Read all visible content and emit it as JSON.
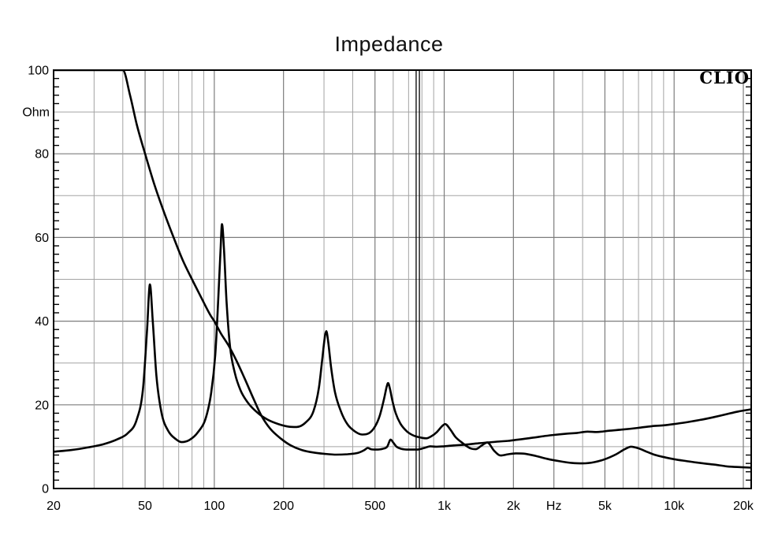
{
  "title": "Impedance",
  "brand": "CLIO",
  "colors": {
    "background": "#ffffff",
    "curve": "#000000",
    "border": "#000000",
    "grid_major": "#7d7d7d",
    "grid_minor": "#a3a3a3",
    "marker_line": "#000000",
    "text": "#000000"
  },
  "chart_data": {
    "type": "line",
    "title": "Impedance",
    "xlabel": "",
    "ylabel": "Ohm",
    "x_unit": "Hz",
    "x_scale": "log",
    "xlim": [
      20,
      21600
    ],
    "ylim": [
      0,
      100
    ],
    "grid": "on",
    "legend_position": "none",
    "y_tick_step_labeled": 20,
    "y_gridline_step": 10,
    "y_minor_tick_step": 2,
    "x_ticks": [
      {
        "value": 20,
        "label": "20"
      },
      {
        "value": 50,
        "label": "50"
      },
      {
        "value": 100,
        "label": "100"
      },
      {
        "value": 200,
        "label": "200"
      },
      {
        "value": 500,
        "label": "500"
      },
      {
        "value": 1000,
        "label": "1k"
      },
      {
        "value": 2000,
        "label": "2k"
      },
      {
        "value": 3000,
        "label": "Hz"
      },
      {
        "value": 5000,
        "label": "5k"
      },
      {
        "value": 10000,
        "label": "10k"
      },
      {
        "value": 20000,
        "label": "20k"
      }
    ],
    "y_ticks": [
      {
        "value": 0,
        "label": "0"
      },
      {
        "value": 20,
        "label": "20"
      },
      {
        "value": 40,
        "label": "40"
      },
      {
        "value": 60,
        "label": "60"
      },
      {
        "value": 80,
        "label": "80"
      },
      {
        "value": 100,
        "label": "100"
      }
    ],
    "marker_lines_hz": [
      755,
      780
    ],
    "series": [
      {
        "name": "impedance-curve-multi-peak",
        "points": [
          [
            20,
            8.8
          ],
          [
            24,
            9.2
          ],
          [
            28,
            9.8
          ],
          [
            33,
            10.6
          ],
          [
            38,
            11.8
          ],
          [
            42,
            13.2
          ],
          [
            46,
            16.5
          ],
          [
            49,
            24
          ],
          [
            51,
            38
          ],
          [
            52.5,
            48.8
          ],
          [
            54,
            40
          ],
          [
            56,
            27
          ],
          [
            59,
            18
          ],
          [
            63,
            13.8
          ],
          [
            68,
            11.8
          ],
          [
            72,
            11.1
          ],
          [
            78,
            11.6
          ],
          [
            85,
            13.5
          ],
          [
            92,
            17
          ],
          [
            97,
            23
          ],
          [
            101,
            32
          ],
          [
            104,
            45
          ],
          [
            106.5,
            57
          ],
          [
            108,
            63.2
          ],
          [
            110,
            58
          ],
          [
            113,
            45
          ],
          [
            117,
            34
          ],
          [
            123,
            27.5
          ],
          [
            130,
            23.5
          ],
          [
            140,
            20.5
          ],
          [
            155,
            18
          ],
          [
            170,
            16.5
          ],
          [
            190,
            15.4
          ],
          [
            210,
            14.8
          ],
          [
            228,
            14.7
          ],
          [
            250,
            15.8
          ],
          [
            270,
            18.5
          ],
          [
            285,
            24
          ],
          [
            295,
            31
          ],
          [
            303,
            36.5
          ],
          [
            307,
            37.6
          ],
          [
            313,
            35
          ],
          [
            322,
            29
          ],
          [
            335,
            23
          ],
          [
            355,
            18.5
          ],
          [
            380,
            15.3
          ],
          [
            410,
            13.6
          ],
          [
            440,
            12.9
          ],
          [
            470,
            13.2
          ],
          [
            500,
            14.8
          ],
          [
            525,
            17.5
          ],
          [
            548,
            21.5
          ],
          [
            562,
            24.3
          ],
          [
            570,
            25.2
          ],
          [
            580,
            24
          ],
          [
            595,
            21
          ],
          [
            615,
            18
          ],
          [
            645,
            15.5
          ],
          [
            690,
            13.6
          ],
          [
            740,
            12.6
          ],
          [
            800,
            12.1
          ],
          [
            835,
            12.0
          ],
          [
            880,
            12.5
          ],
          [
            930,
            13.5
          ],
          [
            975,
            14.8
          ],
          [
            1010,
            15.4
          ],
          [
            1060,
            14.2
          ],
          [
            1120,
            12.3
          ],
          [
            1200,
            10.9
          ],
          [
            1300,
            9.6
          ],
          [
            1370,
            9.4
          ],
          [
            1450,
            10.2
          ],
          [
            1540,
            11.0
          ],
          [
            1650,
            9.0
          ],
          [
            1760,
            7.9
          ],
          [
            1900,
            8.2
          ],
          [
            2050,
            8.4
          ],
          [
            2250,
            8.3
          ],
          [
            2500,
            7.8
          ],
          [
            2800,
            7.1
          ],
          [
            3200,
            6.5
          ],
          [
            3600,
            6.1
          ],
          [
            4000,
            6.0
          ],
          [
            4500,
            6.3
          ],
          [
            5000,
            7.0
          ],
          [
            5600,
            8.2
          ],
          [
            6100,
            9.4
          ],
          [
            6500,
            10.0
          ],
          [
            7000,
            9.6
          ],
          [
            7600,
            8.8
          ],
          [
            8300,
            8.0
          ],
          [
            9200,
            7.4
          ],
          [
            10000,
            7.0
          ],
          [
            11500,
            6.5
          ],
          [
            13000,
            6.1
          ],
          [
            15000,
            5.7
          ],
          [
            17000,
            5.3
          ],
          [
            19500,
            5.1
          ],
          [
            21500,
            5.0
          ]
        ]
      },
      {
        "name": "impedance-curve-highpass",
        "points": [
          [
            20,
            100
          ],
          [
            40,
            100
          ],
          [
            43,
            94
          ],
          [
            46,
            87
          ],
          [
            50,
            80
          ],
          [
            55,
            72.5
          ],
          [
            60,
            66.5
          ],
          [
            66,
            60.5
          ],
          [
            73,
            54.5
          ],
          [
            80,
            50
          ],
          [
            88,
            45.5
          ],
          [
            96,
            41.5
          ],
          [
            100,
            40
          ],
          [
            107,
            37
          ],
          [
            115,
            34.3
          ],
          [
            125,
            30.5
          ],
          [
            135,
            26.5
          ],
          [
            148,
            21.5
          ],
          [
            160,
            17.5
          ],
          [
            175,
            14.3
          ],
          [
            195,
            11.9
          ],
          [
            215,
            10.3
          ],
          [
            240,
            9.2
          ],
          [
            270,
            8.6
          ],
          [
            300,
            8.3
          ],
          [
            340,
            8.1
          ],
          [
            380,
            8.2
          ],
          [
            420,
            8.5
          ],
          [
            450,
            9.2
          ],
          [
            465,
            9.7
          ],
          [
            480,
            9.4
          ],
          [
            505,
            9.3
          ],
          [
            540,
            9.5
          ],
          [
            565,
            10.0
          ],
          [
            585,
            11.7
          ],
          [
            600,
            11.0
          ],
          [
            620,
            10.0
          ],
          [
            650,
            9.5
          ],
          [
            700,
            9.3
          ],
          [
            760,
            9.3
          ],
          [
            820,
            9.7
          ],
          [
            870,
            10.1
          ],
          [
            920,
            10.0
          ],
          [
            1000,
            10.1
          ],
          [
            1100,
            10.3
          ],
          [
            1250,
            10.5
          ],
          [
            1400,
            10.8
          ],
          [
            1550,
            11.0
          ],
          [
            1700,
            11.2
          ],
          [
            1900,
            11.4
          ],
          [
            2100,
            11.7
          ],
          [
            2400,
            12.1
          ],
          [
            2700,
            12.5
          ],
          [
            3000,
            12.8
          ],
          [
            3400,
            13.1
          ],
          [
            3800,
            13.3
          ],
          [
            4200,
            13.6
          ],
          [
            4600,
            13.5
          ],
          [
            5200,
            13.8
          ],
          [
            6000,
            14.1
          ],
          [
            7000,
            14.5
          ],
          [
            8000,
            14.9
          ],
          [
            9000,
            15.1
          ],
          [
            10000,
            15.4
          ],
          [
            11500,
            15.9
          ],
          [
            13000,
            16.4
          ],
          [
            15000,
            17.1
          ],
          [
            17000,
            17.8
          ],
          [
            19000,
            18.4
          ],
          [
            21500,
            18.9
          ]
        ]
      }
    ]
  }
}
